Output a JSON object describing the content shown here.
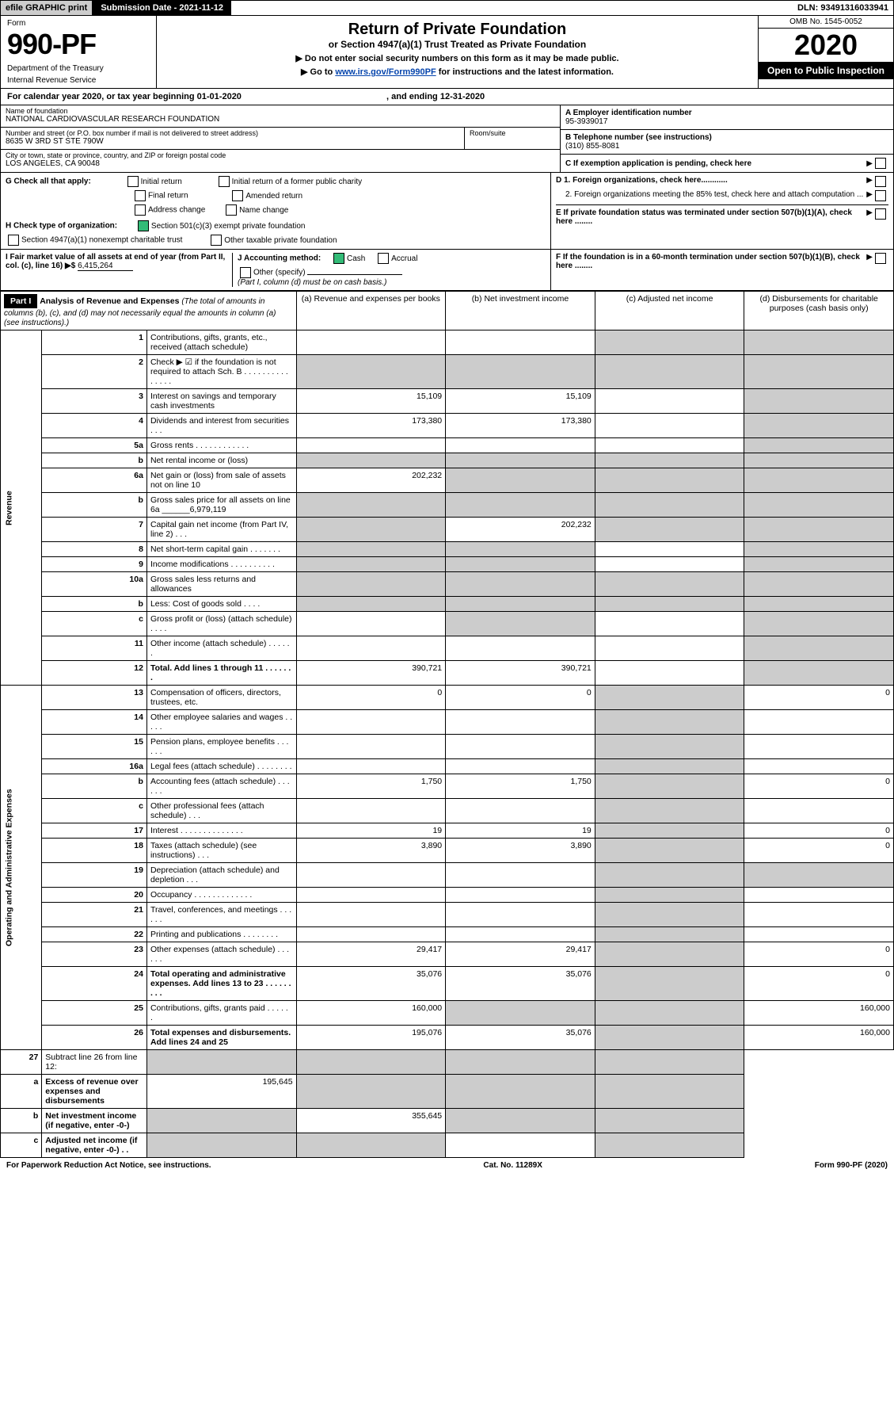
{
  "topbar": {
    "efile_prefix": "efile",
    "efile_graphic": "GRAPHIC",
    "efile_print": "print",
    "sub_label": "Submission Date - 2021-11-12",
    "dln": "DLN: 93491316033941"
  },
  "header": {
    "form_label": "Form",
    "form_no": "990-PF",
    "dept1": "Department of the Treasury",
    "dept2": "Internal Revenue Service",
    "title": "Return of Private Foundation",
    "subtitle": "or Section 4947(a)(1) Trust Treated as Private Foundation",
    "note1": "▶ Do not enter social security numbers on this form as it may be made public.",
    "note2_pre": "▶ Go to ",
    "note2_link": "www.irs.gov/Form990PF",
    "note2_post": " for instructions and the latest information.",
    "omb": "OMB No. 1545-0052",
    "year": "2020",
    "openpub": "Open to Public Inspection"
  },
  "calendar": {
    "text_pre": "For calendar year 2020, or tax year beginning ",
    "begin": "01-01-2020",
    "mid": " , and ending ",
    "end": "12-31-2020"
  },
  "entity": {
    "name_label": "Name of foundation",
    "name": "NATIONAL CARDIOVASCULAR RESEARCH FOUNDATION",
    "addr_label": "Number and street (or P.O. box number if mail is not delivered to street address)",
    "addr": "8635 W 3RD ST STE 790W",
    "room_label": "Room/suite",
    "city_label": "City or town, state or province, country, and ZIP or foreign postal code",
    "city": "LOS ANGELES, CA  90048",
    "a_label": "A Employer identification number",
    "a_val": "95-3939017",
    "b_label": "B Telephone number (see instructions)",
    "b_val": "(310) 855-8081",
    "c_label": "C If exemption application is pending, check here",
    "d1": "D 1. Foreign organizations, check here............",
    "d2": "2. Foreign organizations meeting the 85% test, check here and attach computation ...",
    "e_label": "E  If private foundation status was terminated under section 507(b)(1)(A), check here ........",
    "f_label": "F  If the foundation is in a 60-month termination under section 507(b)(1)(B), check here ........"
  },
  "g_section": {
    "g_label": "G Check all that apply:",
    "g_initial": "Initial return",
    "g_initial_former": "Initial return of a former public charity",
    "g_final": "Final return",
    "g_amended": "Amended return",
    "g_address": "Address change",
    "g_name": "Name change",
    "h_label": "H Check type of organization:",
    "h_501c3": "Section 501(c)(3) exempt private foundation",
    "h_4947": "Section 4947(a)(1) nonexempt charitable trust",
    "h_other_tax": "Other taxable private foundation",
    "i_label": "I Fair market value of all assets at end of year (from Part II, col. (c), line 16) ▶$",
    "i_val": "6,415,264",
    "j_label": "J Accounting method:",
    "j_cash": "Cash",
    "j_accrual": "Accrual",
    "j_other": "Other (specify)",
    "j_note": "(Part I, column (d) must be on cash basis.)"
  },
  "part1": {
    "label": "Part I",
    "title": "Analysis of Revenue and Expenses",
    "title_note": "(The total of amounts in columns (b), (c), and (d) may not necessarily equal the amounts in column (a) (see instructions).)",
    "col_a": "(a) Revenue and expenses per books",
    "col_b": "(b) Net investment income",
    "col_c": "(c) Adjusted net income",
    "col_d": "(d) Disbursements for charitable purposes (cash basis only)"
  },
  "sections": {
    "revenue": "Revenue",
    "opadmin": "Operating and Administrative Expenses"
  },
  "rows": [
    {
      "num": "1",
      "desc": "Contributions, gifts, grants, etc., received (attach schedule)",
      "a": "",
      "b": "",
      "c": "grey",
      "d": "grey"
    },
    {
      "num": "2",
      "desc": "Check ▶ ☑ if the foundation is not required to attach Sch. B   .  .  .  .  .  .  .  .  .  .  .  .  .  .  .",
      "a": "grey",
      "b": "grey",
      "c": "grey",
      "d": "grey"
    },
    {
      "num": "3",
      "desc": "Interest on savings and temporary cash investments",
      "a": "15,109",
      "b": "15,109",
      "c": "",
      "d": "grey"
    },
    {
      "num": "4",
      "desc": "Dividends and interest from securities   .  .  .",
      "a": "173,380",
      "b": "173,380",
      "c": "",
      "d": "grey"
    },
    {
      "num": "5a",
      "desc": "Gross rents   .  .  .  .  .  .  .  .  .  .  .  .",
      "a": "",
      "b": "",
      "c": "",
      "d": "grey"
    },
    {
      "num": "b",
      "desc": "Net rental income or (loss)",
      "a": "grey",
      "b": "grey",
      "c": "grey",
      "d": "grey"
    },
    {
      "num": "6a",
      "desc": "Net gain or (loss) from sale of assets not on line 10",
      "a": "202,232",
      "b": "grey",
      "c": "grey",
      "d": "grey"
    },
    {
      "num": "b",
      "desc": "Gross sales price for all assets on line 6a ______6,979,119",
      "a": "grey",
      "b": "grey",
      "c": "grey",
      "d": "grey"
    },
    {
      "num": "7",
      "desc": "Capital gain net income (from Part IV, line 2)   .  .  .",
      "a": "grey",
      "b": "202,232",
      "c": "grey",
      "d": "grey"
    },
    {
      "num": "8",
      "desc": "Net short-term capital gain   .  .  .  .  .  .  .",
      "a": "grey",
      "b": "grey",
      "c": "",
      "d": "grey"
    },
    {
      "num": "9",
      "desc": "Income modifications .  .  .  .  .  .  .  .  .  .",
      "a": "grey",
      "b": "grey",
      "c": "",
      "d": "grey"
    },
    {
      "num": "10a",
      "desc": "Gross sales less returns and allowances",
      "a": "grey",
      "b": "grey",
      "c": "grey",
      "d": "grey"
    },
    {
      "num": "b",
      "desc": "Less: Cost of goods sold   .  .  .  .",
      "a": "grey",
      "b": "grey",
      "c": "grey",
      "d": "grey"
    },
    {
      "num": "c",
      "desc": "Gross profit or (loss) (attach schedule)   .  .  .  .",
      "a": "",
      "b": "grey",
      "c": "",
      "d": "grey"
    },
    {
      "num": "11",
      "desc": "Other income (attach schedule)   .  .  .  .  .  .",
      "a": "",
      "b": "",
      "c": "",
      "d": "grey"
    },
    {
      "num": "12",
      "desc": "Total. Add lines 1 through 11   .  .  .  .  .  .  .",
      "a": "390,721",
      "b": "390,721",
      "c": "",
      "d": "grey",
      "bold": true
    }
  ],
  "oprows": [
    {
      "num": "13",
      "desc": "Compensation of officers, directors, trustees, etc.",
      "a": "0",
      "b": "0",
      "c": "grey",
      "d": "0"
    },
    {
      "num": "14",
      "desc": "Other employee salaries and wages   .  .  .  .  .",
      "a": "",
      "b": "",
      "c": "grey",
      "d": ""
    },
    {
      "num": "15",
      "desc": "Pension plans, employee benefits  .  .  .  .  .  .",
      "a": "",
      "b": "",
      "c": "grey",
      "d": ""
    },
    {
      "num": "16a",
      "desc": "Legal fees (attach schedule) .  .  .  .  .  .  .  .",
      "a": "",
      "b": "",
      "c": "grey",
      "d": ""
    },
    {
      "num": "b",
      "desc": "Accounting fees (attach schedule) .  .  .  .  .  .",
      "a": "1,750",
      "b": "1,750",
      "c": "grey",
      "d": "0"
    },
    {
      "num": "c",
      "desc": "Other professional fees (attach schedule)   .  .  .",
      "a": "",
      "b": "",
      "c": "grey",
      "d": ""
    },
    {
      "num": "17",
      "desc": "Interest .  .  .  .  .  .  .  .  .  .  .  .  .  .",
      "a": "19",
      "b": "19",
      "c": "grey",
      "d": "0"
    },
    {
      "num": "18",
      "desc": "Taxes (attach schedule) (see instructions)   .  .  .",
      "a": "3,890",
      "b": "3,890",
      "c": "grey",
      "d": "0"
    },
    {
      "num": "19",
      "desc": "Depreciation (attach schedule) and depletion   .  .  .",
      "a": "",
      "b": "",
      "c": "grey",
      "d": "grey"
    },
    {
      "num": "20",
      "desc": "Occupancy .  .  .  .  .  .  .  .  .  .  .  .  .",
      "a": "",
      "b": "",
      "c": "grey",
      "d": ""
    },
    {
      "num": "21",
      "desc": "Travel, conferences, and meetings .  .  .  .  .  .",
      "a": "",
      "b": "",
      "c": "grey",
      "d": ""
    },
    {
      "num": "22",
      "desc": "Printing and publications  .  .  .  .  .  .  .  .",
      "a": "",
      "b": "",
      "c": "grey",
      "d": ""
    },
    {
      "num": "23",
      "desc": "Other expenses (attach schedule)  .  .  .  .  .  .",
      "a": "29,417",
      "b": "29,417",
      "c": "grey",
      "d": "0"
    },
    {
      "num": "24",
      "desc": "Total operating and administrative expenses. Add lines 13 to 23  .  .  .  .  .  .  .  .  .",
      "a": "35,076",
      "b": "35,076",
      "c": "grey",
      "d": "0",
      "bold": true
    },
    {
      "num": "25",
      "desc": "Contributions, gifts, grants paid   .  .  .  .  .  .",
      "a": "160,000",
      "b": "grey",
      "c": "grey",
      "d": "160,000"
    },
    {
      "num": "26",
      "desc": "Total expenses and disbursements. Add lines 24 and 25",
      "a": "195,076",
      "b": "35,076",
      "c": "grey",
      "d": "160,000",
      "bold": true
    }
  ],
  "netrows": [
    {
      "num": "27",
      "desc": "Subtract line 26 from line 12:",
      "a": "grey",
      "b": "grey",
      "c": "grey",
      "d": "grey"
    },
    {
      "num": "a",
      "desc": "Excess of revenue over expenses and disbursements",
      "a": "195,645",
      "b": "grey",
      "c": "grey",
      "d": "grey",
      "bold": true
    },
    {
      "num": "b",
      "desc": "Net investment income (if negative, enter -0-)",
      "a": "grey",
      "b": "355,645",
      "c": "grey",
      "d": "grey",
      "bold": true
    },
    {
      "num": "c",
      "desc": "Adjusted net income (if negative, enter -0-)   .  .",
      "a": "grey",
      "b": "grey",
      "c": "",
      "d": "grey",
      "bold": true
    }
  ],
  "footer": {
    "left": "For Paperwork Reduction Act Notice, see instructions.",
    "mid": "Cat. No. 11289X",
    "right": "Form 990-PF (2020)"
  }
}
